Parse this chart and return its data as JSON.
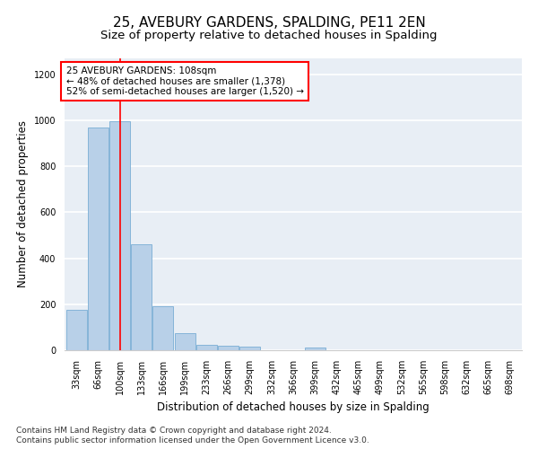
{
  "title": "25, AVEBURY GARDENS, SPALDING, PE11 2EN",
  "subtitle": "Size of property relative to detached houses in Spalding",
  "xlabel": "Distribution of detached houses by size in Spalding",
  "ylabel": "Number of detached properties",
  "categories": [
    "33sqm",
    "66sqm",
    "100sqm",
    "133sqm",
    "166sqm",
    "199sqm",
    "233sqm",
    "266sqm",
    "299sqm",
    "332sqm",
    "366sqm",
    "399sqm",
    "432sqm",
    "465sqm",
    "499sqm",
    "532sqm",
    "565sqm",
    "598sqm",
    "632sqm",
    "665sqm",
    "698sqm"
  ],
  "values": [
    175,
    970,
    995,
    460,
    190,
    75,
    22,
    20,
    14,
    0,
    0,
    10,
    0,
    0,
    0,
    0,
    0,
    0,
    0,
    0,
    0
  ],
  "bar_color": "#b8d0e8",
  "bar_edge_color": "#7aaed4",
  "vline_x": 2,
  "annotation_text": "25 AVEBURY GARDENS: 108sqm\n← 48% of detached houses are smaller (1,378)\n52% of semi-detached houses are larger (1,520) →",
  "annotation_box_color": "white",
  "annotation_box_edge_color": "red",
  "vline_color": "red",
  "ylim": [
    0,
    1270
  ],
  "yticks": [
    0,
    200,
    400,
    600,
    800,
    1000,
    1200
  ],
  "background_color": "#e8eef5",
  "grid_color": "white",
  "footer_line1": "Contains HM Land Registry data © Crown copyright and database right 2024.",
  "footer_line2": "Contains public sector information licensed under the Open Government Licence v3.0.",
  "title_fontsize": 11,
  "subtitle_fontsize": 9.5,
  "axis_label_fontsize": 8.5,
  "tick_fontsize": 7,
  "annotation_fontsize": 7.5,
  "footer_fontsize": 6.5
}
